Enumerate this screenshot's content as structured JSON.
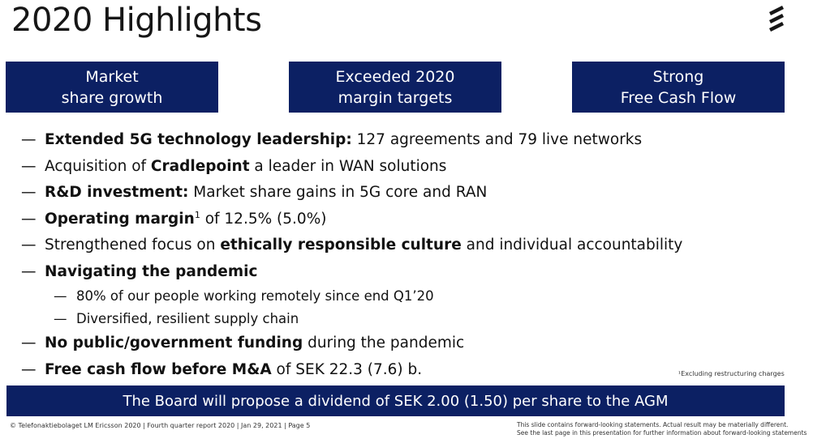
{
  "slide": {
    "title": "2020 Highlights",
    "logo_icon": "ericsson-logo-icon"
  },
  "boxes": [
    {
      "line1": "Market",
      "line2": "share growth"
    },
    {
      "line1": "Exceeded 2020",
      "line2": "margin targets"
    },
    {
      "line1": "Strong",
      "line2": "Free Cash Flow"
    }
  ],
  "bullets": [
    {
      "bold": "Extended 5G technology leadership:",
      "rest": " 127 agreements and 79 live networks"
    },
    {
      "pre": "Acquisition of ",
      "bold": "Cradlepoint",
      "rest": " a leader in WAN solutions"
    },
    {
      "bold": "R&D investment:",
      "rest": " Market share gains in 5G core and RAN"
    },
    {
      "bold": "Operating margin",
      "sup": "1",
      "rest": " of 12.5% (5.0%)"
    },
    {
      "pre": "Strengthened focus on ",
      "bold": "ethically responsible culture",
      "rest": " and individual accountability"
    },
    {
      "bold": "Navigating the pandemic"
    },
    {
      "text": "80% of our people working remotely since end Q1’20"
    },
    {
      "text": "Diversified, resilient supply chain"
    },
    {
      "bold": "No public/government funding",
      "rest": " during the pandemic"
    },
    {
      "bold": "Free cash flow before M&A",
      "rest": " of SEK 22.3 (7.6) b."
    }
  ],
  "footnote": "¹Excluding restructuring charges",
  "banner": "The Board will propose a dividend of SEK 2.00 (1.50) per share to the AGM",
  "footer": {
    "left": "© Telefonaktiebolaget LM Ericsson 2020  |  Fourth quarter report 2020  |  Jan 29, 2021  |  Page 5",
    "right_line1": "This slide contains forward-looking statements. Actual result may be materially different.",
    "right_line2": "See the last page in this presentation for further information about forward-looking statements"
  },
  "colors": {
    "navy": "#0c2063",
    "text": "#111111",
    "background": "#ffffff"
  }
}
